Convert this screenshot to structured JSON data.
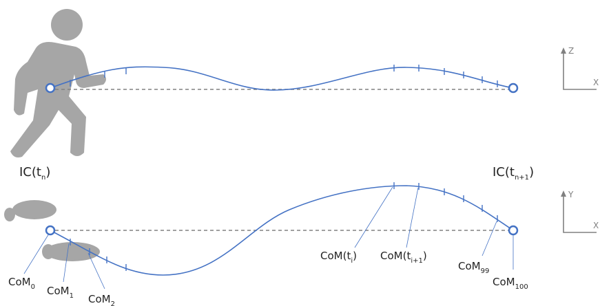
{
  "top_panel": {
    "label_start": {
      "text": "IC(t",
      "sub": "n",
      "end": ")"
    },
    "label_end": {
      "text": "IC(t",
      "sub": "n+1",
      "end": ")"
    },
    "axes": {
      "vertical": "Z",
      "horizontal": "X"
    }
  },
  "bottom_panel": {
    "axes": {
      "vertical": "Y",
      "horizontal": "X"
    },
    "labels": [
      {
        "text": "CoM",
        "sub": "0"
      },
      {
        "text": "CoM",
        "sub": "1"
      },
      {
        "text": "CoM",
        "sub": "2"
      },
      {
        "text": "CoM(t",
        "sub": "i",
        "end": ")"
      },
      {
        "text": "CoM(t",
        "sub": "i+1",
        "end": ")"
      },
      {
        "text": "CoM",
        "sub": "99"
      },
      {
        "text": "CoM",
        "sub": "100"
      }
    ]
  }
}
